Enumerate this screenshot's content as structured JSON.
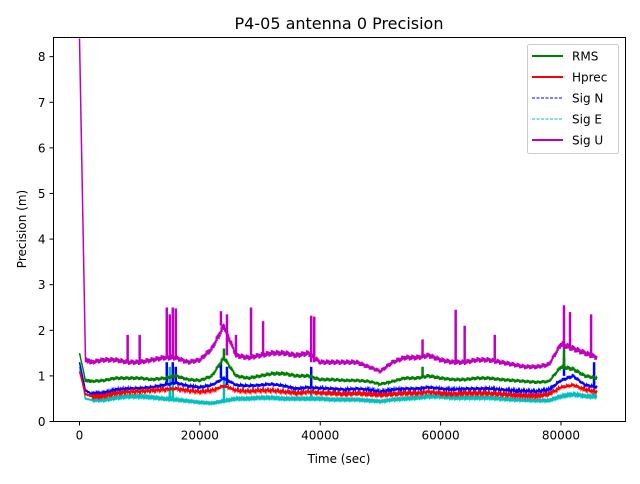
{
  "chart_data": {
    "type": "line",
    "title": "P4-05 antenna 0 Precision",
    "xlabel": "Time (sec)",
    "ylabel": "Precision (m)",
    "xlim": [
      -4320,
      90720
    ],
    "ylim": [
      0,
      8.42
    ],
    "xticks": [
      0,
      20000,
      40000,
      60000,
      80000
    ],
    "xtick_labels": [
      "0",
      "20000",
      "40000",
      "60000",
      "80000"
    ],
    "yticks": [
      0,
      1,
      2,
      3,
      4,
      5,
      6,
      7,
      8
    ],
    "ytick_labels": [
      "0",
      "1",
      "2",
      "3",
      "4",
      "5",
      "6",
      "7",
      "8"
    ],
    "legend_position": "top-right",
    "x": [
      0,
      1000,
      2000,
      4000,
      6000,
      8000,
      10000,
      12000,
      14000,
      16000,
      18000,
      20000,
      22000,
      24000,
      26000,
      28000,
      30000,
      32000,
      34000,
      36000,
      38000,
      40000,
      42000,
      44000,
      46000,
      48000,
      50000,
      52000,
      54000,
      56000,
      58000,
      60000,
      62000,
      64000,
      66000,
      68000,
      70000,
      72000,
      74000,
      76000,
      78000,
      80000,
      82000,
      84000,
      86000
    ],
    "series": [
      {
        "name": "Sig E",
        "color": "#00bfbf",
        "dash": "dashed",
        "values": [
          1.2,
          0.5,
          0.47,
          0.47,
          0.52,
          0.55,
          0.55,
          0.53,
          0.5,
          0.48,
          0.45,
          0.42,
          0.4,
          0.45,
          0.5,
          0.5,
          0.52,
          0.52,
          0.5,
          0.5,
          0.5,
          0.5,
          0.48,
          0.48,
          0.48,
          0.46,
          0.44,
          0.48,
          0.5,
          0.52,
          0.55,
          0.55,
          0.52,
          0.52,
          0.52,
          0.52,
          0.5,
          0.48,
          0.47,
          0.46,
          0.46,
          0.55,
          0.6,
          0.55,
          0.55
        ],
        "spikes": [
          [
            15000,
            1.2
          ],
          [
            15500,
            1.1
          ],
          [
            24000,
            1.0
          ],
          [
            38500,
            1.0
          ],
          [
            85500,
            1.0
          ]
        ]
      },
      {
        "name": "Sig N",
        "color": "#0000ff",
        "dash": "dashed",
        "values": [
          1.3,
          0.68,
          0.6,
          0.62,
          0.7,
          0.72,
          0.73,
          0.75,
          0.8,
          0.85,
          0.78,
          0.75,
          0.8,
          0.95,
          0.8,
          0.78,
          0.8,
          0.82,
          0.78,
          0.72,
          0.75,
          0.73,
          0.72,
          0.7,
          0.72,
          0.7,
          0.65,
          0.7,
          0.72,
          0.72,
          0.75,
          0.72,
          0.7,
          0.72,
          0.72,
          0.72,
          0.7,
          0.68,
          0.67,
          0.66,
          0.7,
          0.9,
          1.0,
          0.8,
          0.75
        ],
        "spikes": [
          [
            14500,
            1.3
          ],
          [
            15500,
            1.3
          ],
          [
            16000,
            1.2
          ],
          [
            23500,
            1.3
          ],
          [
            24500,
            1.2
          ],
          [
            38500,
            1.2
          ],
          [
            80500,
            1.4
          ],
          [
            85500,
            1.3
          ]
        ]
      },
      {
        "name": "Hprec",
        "color": "#ff0000",
        "dash": "solid",
        "values": [
          1.1,
          0.6,
          0.55,
          0.55,
          0.62,
          0.65,
          0.66,
          0.68,
          0.7,
          0.72,
          0.68,
          0.65,
          0.68,
          0.78,
          0.68,
          0.66,
          0.68,
          0.68,
          0.65,
          0.62,
          0.65,
          0.63,
          0.62,
          0.6,
          0.62,
          0.6,
          0.58,
          0.6,
          0.62,
          0.62,
          0.65,
          0.62,
          0.6,
          0.62,
          0.62,
          0.62,
          0.6,
          0.58,
          0.57,
          0.56,
          0.6,
          0.75,
          0.8,
          0.7,
          0.65
        ],
        "spikes": []
      },
      {
        "name": "RMS",
        "color": "#008000",
        "dash": "solid",
        "values": [
          1.5,
          0.9,
          0.88,
          0.9,
          0.95,
          0.95,
          0.95,
          0.92,
          0.95,
          1.0,
          0.92,
          0.9,
          1.0,
          1.4,
          1.0,
          0.95,
          1.0,
          1.05,
          1.05,
          1.0,
          1.0,
          0.92,
          0.92,
          0.9,
          0.9,
          0.88,
          0.82,
          0.88,
          0.95,
          0.95,
          1.0,
          0.95,
          0.92,
          0.92,
          0.95,
          0.95,
          0.92,
          0.9,
          0.88,
          0.86,
          0.88,
          1.2,
          1.15,
          1.0,
          0.95
        ],
        "spikes": [
          [
            24000,
            1.6
          ],
          [
            80500,
            1.6
          ],
          [
            57000,
            1.2
          ]
        ]
      },
      {
        "name": "Sig U",
        "color": "#bf00bf",
        "dash": "solid",
        "values": [
          8.4,
          1.35,
          1.3,
          1.35,
          1.35,
          1.3,
          1.3,
          1.35,
          1.4,
          1.4,
          1.3,
          1.35,
          1.6,
          2.1,
          1.45,
          1.4,
          1.45,
          1.5,
          1.5,
          1.45,
          1.5,
          1.3,
          1.3,
          1.3,
          1.3,
          1.2,
          1.1,
          1.3,
          1.4,
          1.4,
          1.45,
          1.35,
          1.3,
          1.3,
          1.35,
          1.35,
          1.3,
          1.25,
          1.2,
          1.2,
          1.25,
          1.7,
          1.6,
          1.5,
          1.4
        ],
        "spikes": [
          [
            8000,
            1.9
          ],
          [
            10000,
            1.9
          ],
          [
            14500,
            2.5
          ],
          [
            15000,
            2.35
          ],
          [
            15500,
            2.5
          ],
          [
            16000,
            2.48
          ],
          [
            23500,
            2.42
          ],
          [
            24500,
            2.35
          ],
          [
            26000,
            1.9
          ],
          [
            28500,
            2.5
          ],
          [
            30500,
            2.2
          ],
          [
            38500,
            2.32
          ],
          [
            39000,
            2.3
          ],
          [
            57000,
            1.8
          ],
          [
            62500,
            2.45
          ],
          [
            64000,
            2.1
          ],
          [
            69000,
            1.9
          ],
          [
            80500,
            2.55
          ],
          [
            81500,
            2.4
          ],
          [
            85000,
            2.35
          ]
        ]
      }
    ],
    "legend": [
      "RMS",
      "Hprec",
      "Sig N",
      "Sig E",
      "Sig U"
    ]
  }
}
